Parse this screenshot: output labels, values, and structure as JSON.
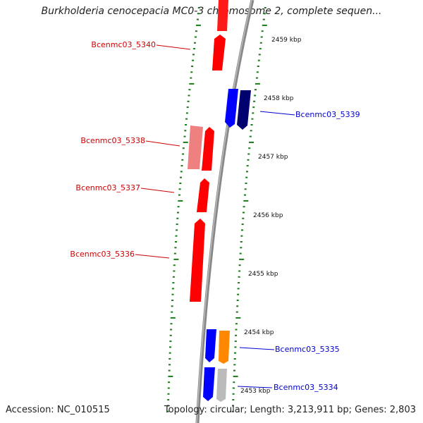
{
  "title": "Burkholderia cenocepacia MC0-3 chromosome 2, complete sequen...",
  "footer": {
    "accession": "Accession: NC_010515",
    "summary": "Topology: circular; Length: 3,213,911 bp; Genes: 2,803"
  },
  "colors": {
    "forward_strand": "#ff0000",
    "reverse_strand": "#0000ff",
    "backbone": "#888888",
    "tick": "#1a7a1a",
    "label_red": "#cc0000",
    "label_blue": "#0000cc"
  },
  "kbp_labels": [
    "2459 kbp",
    "2458 kbp",
    "2457 kbp",
    "2456 kbp",
    "2455 kbp",
    "2454 kbp",
    "2453 kbp"
  ],
  "genes": [
    {
      "id": "Bcenmc03_5340",
      "strand": "forward"
    },
    {
      "id": "Bcenmc03_5339",
      "strand": "reverse"
    },
    {
      "id": "Bcenmc03_5338",
      "strand": "forward"
    },
    {
      "id": "Bcenmc03_5337",
      "strand": "forward"
    },
    {
      "id": "Bcenmc03_5336",
      "strand": "forward"
    },
    {
      "id": "Bcenmc03_5335",
      "strand": "reverse"
    },
    {
      "id": "Bcenmc03_5334",
      "strand": "reverse"
    }
  ]
}
